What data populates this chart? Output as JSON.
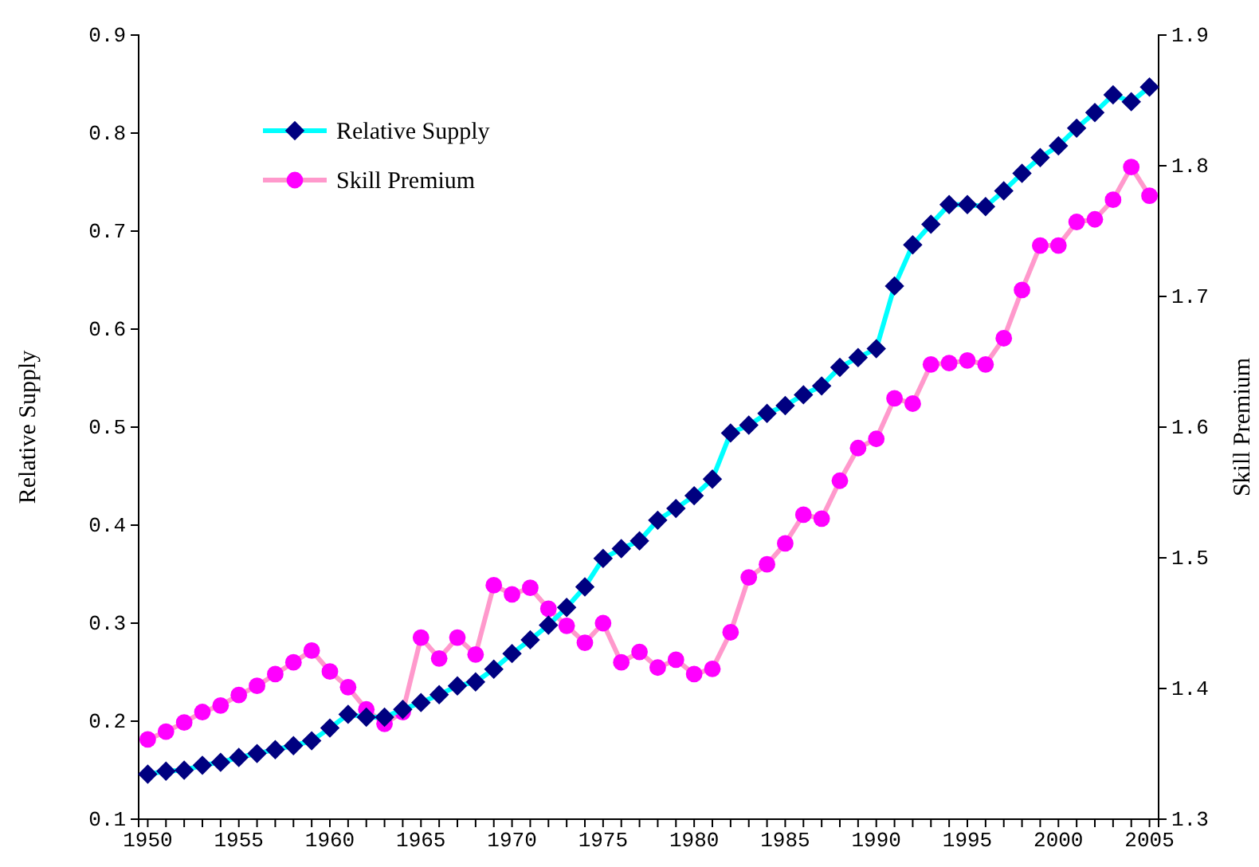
{
  "chart_data": {
    "type": "line",
    "xlabel": null,
    "ylabel": "Relative Supply",
    "y2label": "Skill Premium",
    "x": [
      1950,
      1951,
      1952,
      1953,
      1954,
      1955,
      1956,
      1957,
      1958,
      1959,
      1960,
      1961,
      1962,
      1963,
      1964,
      1965,
      1966,
      1967,
      1968,
      1969,
      1970,
      1971,
      1972,
      1973,
      1974,
      1975,
      1976,
      1977,
      1978,
      1979,
      1980,
      1981,
      1982,
      1983,
      1984,
      1985,
      1986,
      1987,
      1988,
      1989,
      1990,
      1991,
      1992,
      1993,
      1994,
      1995,
      1996,
      1997,
      1998,
      1999,
      2000,
      2001,
      2002,
      2003,
      2004,
      2005
    ],
    "series": [
      {
        "name": "Relative Supply",
        "color": "#00ffff",
        "colors": [
          "#000080",
          "#000080",
          "#000080",
          "#000080",
          "#000080",
          "#000080",
          "#000080",
          "#000080",
          "#000080",
          "#000080",
          "#000080",
          "#000080",
          "#000080",
          "#000080",
          "#000080",
          "#000080",
          "#000080",
          "#000080",
          "#000080",
          "#000080",
          "#000080",
          "#000080",
          "#000080",
          "#000080",
          "#000080",
          "#000080",
          "#000080",
          "#000080",
          "#000080",
          "#000080",
          "#000080",
          "#000080",
          "#000080",
          "#000080",
          "#000080",
          "#000080",
          "#000080",
          "#000080",
          "#000080",
          "#000080",
          "#000080",
          "#000080",
          "#000080",
          "#000080",
          "#000080",
          "#000080",
          "#000080",
          "#000080",
          "#000080",
          "#000080",
          "#000080",
          "#000080",
          "#000080",
          "#000080",
          "#000080",
          "#000080"
        ],
        "marker": "diamond",
        "values": [
          0.146,
          0.149,
          0.15,
          0.155,
          0.158,
          0.163,
          0.167,
          0.171,
          0.175,
          0.18,
          0.193,
          0.207,
          0.204,
          0.204,
          0.212,
          0.219,
          0.227,
          0.236,
          0.24,
          0.253,
          0.269,
          0.283,
          0.298,
          0.316,
          0.337,
          0.366,
          0.376,
          0.384,
          0.405,
          0.417,
          0.43,
          0.447,
          0.494,
          0.502,
          0.514,
          0.522,
          0.533,
          0.542,
          0.561,
          0.571,
          0.58,
          0.644,
          0.686,
          0.707,
          0.727,
          0.727,
          0.725,
          0.741,
          0.759,
          0.775,
          0.787,
          0.805,
          0.821,
          0.839,
          0.832,
          0.847
        ]
      },
      {
        "name": "Skill Premium",
        "color": "#ff99cc",
        "colors": [
          "#ff00ff",
          "#ff00ff",
          "#ff00ff",
          "#ff00ff",
          "#ff00ff",
          "#ff00ff",
          "#ff00ff",
          "#ff00ff",
          "#ff00ff",
          "#ff00ff",
          "#ff00ff",
          "#ff00ff",
          "#ff00ff",
          "#ff00ff",
          "#ff00ff",
          "#ff00ff",
          "#ff00ff",
          "#ff00ff",
          "#ff00ff",
          "#ff00ff",
          "#ff00ff",
          "#ff00ff",
          "#ff00ff",
          "#ff00ff",
          "#ff00ff",
          "#ff00ff",
          "#ff00ff",
          "#ff00ff",
          "#ff00ff",
          "#ff00ff",
          "#ff00ff",
          "#ff00ff",
          "#ff00ff",
          "#ff00ff",
          "#ff00ff",
          "#ff00ff",
          "#ff00ff",
          "#ff00ff",
          "#ff00ff",
          "#ff00ff",
          "#ff00ff",
          "#ff00ff",
          "#ff00ff",
          "#ff00ff",
          "#ff00ff",
          "#ff00ff",
          "#ff00ff",
          "#ff00ff",
          "#ff00ff",
          "#ff00ff",
          "#ff00ff",
          "#ff00ff",
          "#ff00ff",
          "#ff00ff",
          "#ff00ff",
          "#ff00ff"
        ],
        "marker": "circle",
        "axis": "y2",
        "values": [
          1.361,
          1.367,
          1.374,
          1.382,
          1.387,
          1.395,
          1.402,
          1.411,
          1.42,
          1.429,
          1.413,
          1.401,
          1.384,
          1.373,
          1.382,
          1.439,
          1.423,
          1.439,
          1.426,
          1.479,
          1.472,
          1.477,
          1.461,
          1.448,
          1.435,
          1.45,
          1.42,
          1.428,
          1.416,
          1.422,
          1.411,
          1.415,
          1.443,
          1.485,
          1.495,
          1.511,
          1.533,
          1.53,
          1.559,
          1.584,
          1.591,
          1.622,
          1.618,
          1.648,
          1.649,
          1.651,
          1.648,
          1.668,
          1.705,
          1.739,
          1.739,
          1.757,
          1.759,
          1.774,
          1.799,
          1.777
        ]
      }
    ],
    "xlim": [
      1949.5,
      2005.5
    ],
    "xticks": [
      1950,
      {
        "value": 1951,
        "label": null
      },
      {
        "value": 1952,
        "label": null
      },
      {
        "value": 1953,
        "label": null
      },
      {
        "value": 1954,
        "label": null
      },
      1955,
      {
        "value": 1956,
        "label": null
      },
      {
        "value": 1957,
        "label": null
      },
      {
        "value": 1958,
        "label": null
      },
      {
        "value": 1959,
        "label": null
      },
      1960,
      {
        "value": 1961,
        "label": null
      },
      {
        "value": 1962,
        "label": null
      },
      {
        "value": 1963,
        "label": null
      },
      {
        "value": 1964,
        "label": null
      },
      1965,
      {
        "value": 1966,
        "label": null
      },
      {
        "value": 1967,
        "label": null
      },
      {
        "value": 1968,
        "label": null
      },
      {
        "value": 1969,
        "label": null
      },
      1970,
      {
        "value": 1971,
        "label": null
      },
      {
        "value": 1972,
        "label": null
      },
      {
        "value": 1973,
        "label": null
      },
      {
        "value": 1974,
        "label": null
      },
      1975,
      {
        "value": 1976,
        "label": null
      },
      {
        "value": 1977,
        "label": null
      },
      {
        "value": 1978,
        "label": null
      },
      {
        "value": 1979,
        "label": null
      },
      1980,
      {
        "value": 1981,
        "label": null
      },
      {
        "value": 1982,
        "label": null
      },
      {
        "value": 1983,
        "label": null
      },
      {
        "value": 1984,
        "label": null
      },
      1985,
      {
        "value": 1986,
        "label": null
      },
      {
        "value": 1987,
        "label": null
      },
      {
        "value": 1988,
        "label": null
      },
      {
        "value": 1989,
        "label": null
      },
      1990,
      {
        "value": 1991,
        "label": null
      },
      {
        "value": 1992,
        "label": null
      },
      {
        "value": 1993,
        "label": null
      },
      {
        "value": 1994,
        "label": null
      },
      1995,
      {
        "value": 1996,
        "label": null
      },
      {
        "value": 1997,
        "label": null
      },
      {
        "value": 1998,
        "label": null
      },
      {
        "value": 1999,
        "label": null
      },
      2000,
      {
        "value": 2001,
        "label": null
      },
      {
        "value": 2002,
        "label": null
      },
      {
        "value": 2003,
        "label": null
      },
      {
        "value": 2004,
        "label": null
      },
      2005
    ],
    "ylim": [
      0.1,
      0.9
    ],
    "yticks": [
      {
        "value": 0.1,
        "label": "0.1"
      },
      {
        "value": 0.2,
        "label": "0.2"
      },
      {
        "value": 0.3,
        "label": "0.3"
      },
      {
        "value": 0.4,
        "label": "0.4"
      },
      {
        "value": 0.5,
        "label": "0.5"
      },
      {
        "value": 0.6,
        "label": "0.6"
      },
      {
        "value": 0.7,
        "label": "0.7"
      },
      {
        "value": 0.8,
        "label": "0.8"
      },
      {
        "value": 0.9,
        "label": "0.9"
      }
    ],
    "y2lim": [
      1.3,
      1.9
    ],
    "y2ticks": [
      {
        "value": 1.3,
        "label": "1.3"
      },
      {
        "value": 1.4,
        "label": "1.4"
      },
      {
        "value": 1.5,
        "label": "1.5"
      },
      {
        "value": 1.6,
        "label": "1.6"
      },
      {
        "value": 1.7,
        "label": "1.7"
      },
      {
        "value": 1.8,
        "label": "1.8"
      },
      {
        "value": 1.9,
        "label": "1.9"
      }
    ],
    "grid": false,
    "legend": "top left",
    "line_style": "solid"
  }
}
